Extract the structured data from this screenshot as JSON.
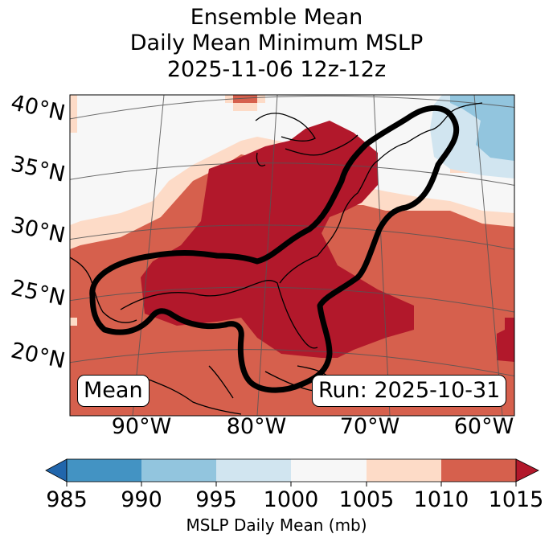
{
  "title": {
    "line1": "Ensemble Mean",
    "line2": "Daily Mean Minimum MSLP",
    "line3": "2025-11-06 12z-12z"
  },
  "map": {
    "lat_labels": [
      "40°N",
      "35°N",
      "30°N",
      "25°N",
      "20°N"
    ],
    "lon_labels": [
      "90°W",
      "80°W",
      "70°W",
      "60°W"
    ],
    "left_box": "Mean",
    "right_box": "Run: 2025-10-31"
  },
  "colorbar": {
    "ticks": [
      "985",
      "990",
      "995",
      "1000",
      "1005",
      "1010",
      "1015"
    ],
    "label": "MSLP Daily Mean (mb)",
    "colors": {
      "under": "#2166ac",
      "c985": "#4393c3",
      "c990": "#92c5de",
      "c995": "#d1e5f0",
      "c1000": "#f7f7f7",
      "c1005": "#fddbc7",
      "c1010": "#d6604d",
      "over": "#b2182b"
    }
  }
}
